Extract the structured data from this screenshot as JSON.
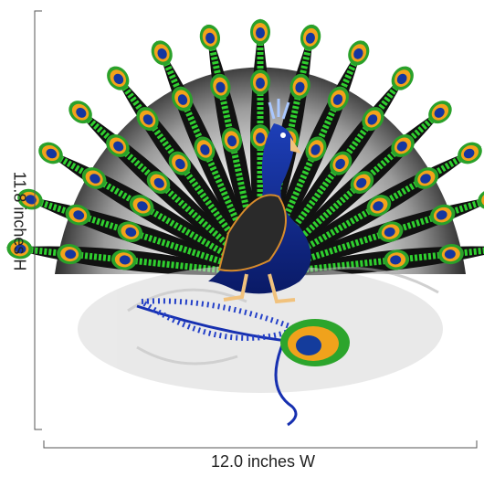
{
  "dimensions": {
    "height_label": "11.8 inches H",
    "width_label": "12.0 inches W"
  }
}
